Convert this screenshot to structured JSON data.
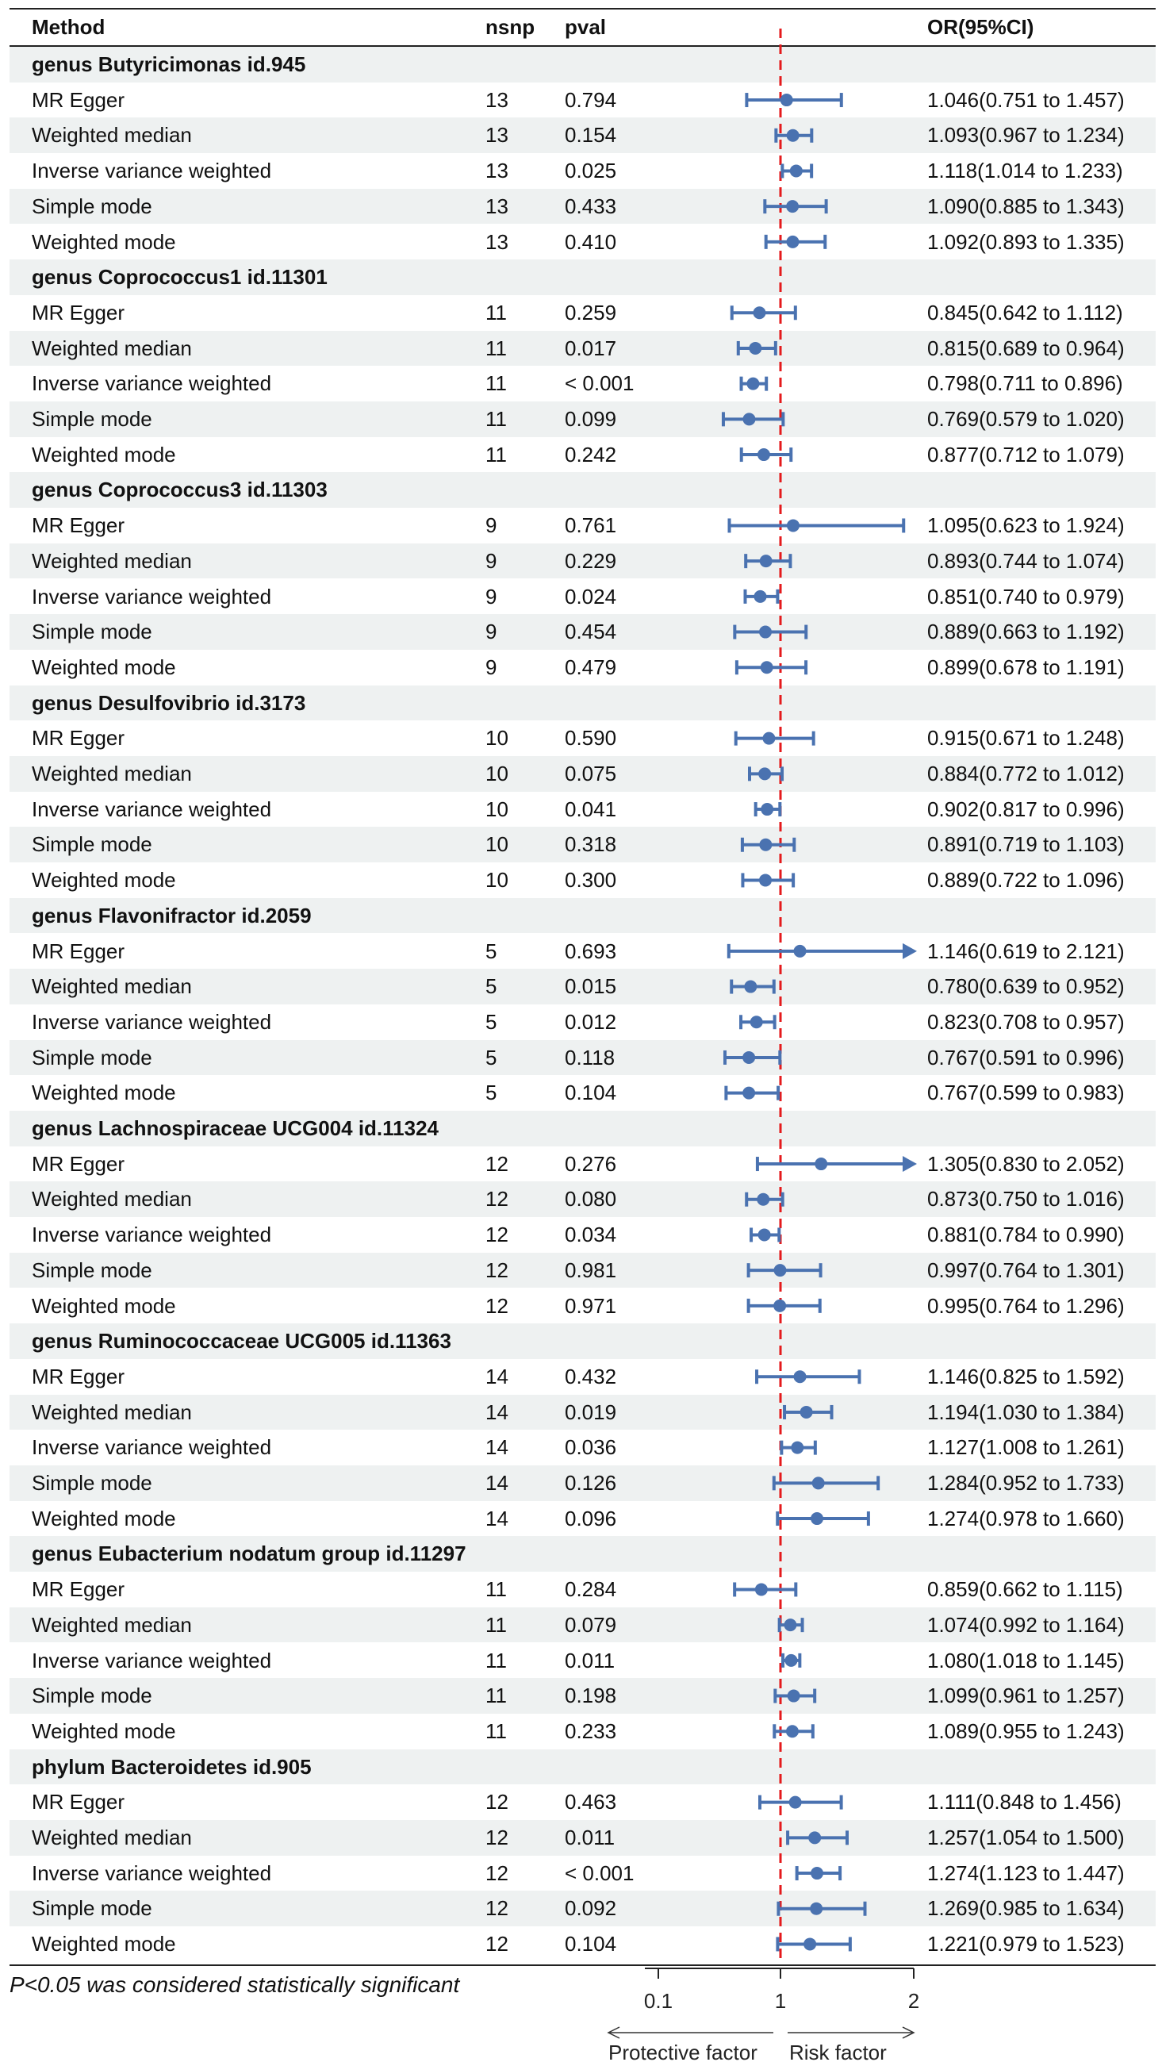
{
  "headers": {
    "method": "Method",
    "nsnp": "nsnp",
    "pval": "pval",
    "or": "OR(95%CI)"
  },
  "footnote": "P<0.05 was considered statistically significant",
  "colors": {
    "point": "#4a72b0",
    "reference": "#e41a1c",
    "shade": "#eef1f1"
  },
  "chart_data": {
    "type": "forest",
    "x_axis": {
      "ticks": [
        0.1,
        1,
        2
      ],
      "tick_labels": [
        "0.1",
        "1",
        "2"
      ],
      "reference_line": 1
    },
    "direction_labels": {
      "left": "Protective factor",
      "right": "Risk factor"
    },
    "groups": [
      {
        "label": "genus Butyricimonas id.945",
        "rows": [
          {
            "method": "MR Egger",
            "nsnp": "13",
            "pval": "0.794",
            "or": 1.046,
            "lo": 0.751,
            "hi": 1.457,
            "or_text": "1.046(0.751 to 1.457)"
          },
          {
            "method": "Weighted median",
            "nsnp": "13",
            "pval": "0.154",
            "or": 1.093,
            "lo": 0.967,
            "hi": 1.234,
            "or_text": "1.093(0.967 to 1.234)"
          },
          {
            "method": "Inverse variance weighted",
            "nsnp": "13",
            "pval": "0.025",
            "or": 1.118,
            "lo": 1.014,
            "hi": 1.233,
            "or_text": "1.118(1.014 to 1.233)"
          },
          {
            "method": "Simple mode",
            "nsnp": "13",
            "pval": "0.433",
            "or": 1.09,
            "lo": 0.885,
            "hi": 1.343,
            "or_text": "1.090(0.885 to 1.343)"
          },
          {
            "method": "Weighted mode",
            "nsnp": "13",
            "pval": "0.410",
            "or": 1.092,
            "lo": 0.893,
            "hi": 1.335,
            "or_text": "1.092(0.893 to 1.335)"
          }
        ]
      },
      {
        "label": "genus Coprococcus1 id.11301",
        "rows": [
          {
            "method": "MR Egger",
            "nsnp": "11",
            "pval": "0.259",
            "or": 0.845,
            "lo": 0.642,
            "hi": 1.112,
            "or_text": "0.845(0.642 to 1.112)"
          },
          {
            "method": "Weighted median",
            "nsnp": "11",
            "pval": "0.017",
            "or": 0.815,
            "lo": 0.689,
            "hi": 0.964,
            "or_text": "0.815(0.689 to 0.964)"
          },
          {
            "method": "Inverse variance weighted",
            "nsnp": "11",
            "pval": "< 0.001",
            "or": 0.798,
            "lo": 0.711,
            "hi": 0.896,
            "or_text": "0.798(0.711 to 0.896)"
          },
          {
            "method": "Simple mode",
            "nsnp": "11",
            "pval": "0.099",
            "or": 0.769,
            "lo": 0.579,
            "hi": 1.02,
            "or_text": "0.769(0.579 to 1.020)"
          },
          {
            "method": "Weighted mode",
            "nsnp": "11",
            "pval": "0.242",
            "or": 0.877,
            "lo": 0.712,
            "hi": 1.079,
            "or_text": "0.877(0.712 to 1.079)"
          }
        ]
      },
      {
        "label": "genus Coprococcus3 id.11303",
        "rows": [
          {
            "method": "MR Egger",
            "nsnp": "9",
            "pval": "0.761",
            "or": 1.095,
            "lo": 0.623,
            "hi": 1.924,
            "or_text": "1.095(0.623 to 1.924)"
          },
          {
            "method": "Weighted median",
            "nsnp": "9",
            "pval": "0.229",
            "or": 0.893,
            "lo": 0.744,
            "hi": 1.074,
            "or_text": "0.893(0.744 to 1.074)"
          },
          {
            "method": "Inverse variance weighted",
            "nsnp": "9",
            "pval": "0.024",
            "or": 0.851,
            "lo": 0.74,
            "hi": 0.979,
            "or_text": "0.851(0.740 to 0.979)"
          },
          {
            "method": "Simple mode",
            "nsnp": "9",
            "pval": "0.454",
            "or": 0.889,
            "lo": 0.663,
            "hi": 1.192,
            "or_text": "0.889(0.663 to 1.192)"
          },
          {
            "method": "Weighted mode",
            "nsnp": "9",
            "pval": "0.479",
            "or": 0.899,
            "lo": 0.678,
            "hi": 1.191,
            "or_text": "0.899(0.678 to 1.191)"
          }
        ]
      },
      {
        "label": "genus Desulfovibrio id.3173",
        "rows": [
          {
            "method": "MR Egger",
            "nsnp": "10",
            "pval": "0.590",
            "or": 0.915,
            "lo": 0.671,
            "hi": 1.248,
            "or_text": "0.915(0.671 to 1.248)"
          },
          {
            "method": "Weighted median",
            "nsnp": "10",
            "pval": "0.075",
            "or": 0.884,
            "lo": 0.772,
            "hi": 1.012,
            "or_text": "0.884(0.772 to 1.012)"
          },
          {
            "method": "Inverse variance weighted",
            "nsnp": "10",
            "pval": "0.041",
            "or": 0.902,
            "lo": 0.817,
            "hi": 0.996,
            "or_text": "0.902(0.817 to 0.996)"
          },
          {
            "method": "Simple mode",
            "nsnp": "10",
            "pval": "0.318",
            "or": 0.891,
            "lo": 0.719,
            "hi": 1.103,
            "or_text": "0.891(0.719 to 1.103)"
          },
          {
            "method": "Weighted mode",
            "nsnp": "10",
            "pval": "0.300",
            "or": 0.889,
            "lo": 0.722,
            "hi": 1.096,
            "or_text": "0.889(0.722 to 1.096)"
          }
        ]
      },
      {
        "label": "genus Flavonifractor id.2059",
        "rows": [
          {
            "method": "MR Egger",
            "nsnp": "5",
            "pval": "0.693",
            "or": 1.146,
            "lo": 0.619,
            "hi": 2.121,
            "or_text": "1.146(0.619 to 2.121)"
          },
          {
            "method": "Weighted median",
            "nsnp": "5",
            "pval": "0.015",
            "or": 0.78,
            "lo": 0.639,
            "hi": 0.952,
            "or_text": "0.780(0.639 to 0.952)"
          },
          {
            "method": "Inverse variance weighted",
            "nsnp": "5",
            "pval": "0.012",
            "or": 0.823,
            "lo": 0.708,
            "hi": 0.957,
            "or_text": "0.823(0.708 to 0.957)"
          },
          {
            "method": "Simple mode",
            "nsnp": "5",
            "pval": "0.118",
            "or": 0.767,
            "lo": 0.591,
            "hi": 0.996,
            "or_text": "0.767(0.591 to 0.996)"
          },
          {
            "method": "Weighted mode",
            "nsnp": "5",
            "pval": "0.104",
            "or": 0.767,
            "lo": 0.599,
            "hi": 0.983,
            "or_text": "0.767(0.599 to 0.983)"
          }
        ]
      },
      {
        "label": "genus Lachnospiraceae UCG004 id.11324",
        "rows": [
          {
            "method": "MR Egger",
            "nsnp": "12",
            "pval": "0.276",
            "or": 1.305,
            "lo": 0.83,
            "hi": 2.052,
            "or_text": "1.305(0.830 to 2.052)"
          },
          {
            "method": "Weighted median",
            "nsnp": "12",
            "pval": "0.080",
            "or": 0.873,
            "lo": 0.75,
            "hi": 1.016,
            "or_text": "0.873(0.750 to 1.016)"
          },
          {
            "method": "Inverse variance weighted",
            "nsnp": "12",
            "pval": "0.034",
            "or": 0.881,
            "lo": 0.784,
            "hi": 0.99,
            "or_text": "0.881(0.784 to 0.990)"
          },
          {
            "method": "Simple mode",
            "nsnp": "12",
            "pval": "0.981",
            "or": 0.997,
            "lo": 0.764,
            "hi": 1.301,
            "or_text": "0.997(0.764 to 1.301)"
          },
          {
            "method": "Weighted mode",
            "nsnp": "12",
            "pval": "0.971",
            "or": 0.995,
            "lo": 0.764,
            "hi": 1.296,
            "or_text": "0.995(0.764 to 1.296)"
          }
        ]
      },
      {
        "label": "genus Ruminococcaceae UCG005 id.11363",
        "rows": [
          {
            "method": "MR Egger",
            "nsnp": "14",
            "pval": "0.432",
            "or": 1.146,
            "lo": 0.825,
            "hi": 1.592,
            "or_text": "1.146(0.825 to 1.592)"
          },
          {
            "method": "Weighted median",
            "nsnp": "14",
            "pval": "0.019",
            "or": 1.194,
            "lo": 1.03,
            "hi": 1.384,
            "or_text": "1.194(1.030 to 1.384)"
          },
          {
            "method": "Inverse variance weighted",
            "nsnp": "14",
            "pval": "0.036",
            "or": 1.127,
            "lo": 1.008,
            "hi": 1.261,
            "or_text": "1.127(1.008 to 1.261)"
          },
          {
            "method": "Simple mode",
            "nsnp": "14",
            "pval": "0.126",
            "or": 1.284,
            "lo": 0.952,
            "hi": 1.733,
            "or_text": "1.284(0.952 to 1.733)"
          },
          {
            "method": "Weighted mode",
            "nsnp": "14",
            "pval": "0.096",
            "or": 1.274,
            "lo": 0.978,
            "hi": 1.66,
            "or_text": "1.274(0.978 to 1.660)"
          }
        ]
      },
      {
        "label": "genus Eubacterium nodatum group id.11297",
        "rows": [
          {
            "method": "MR Egger",
            "nsnp": "11",
            "pval": "0.284",
            "or": 0.859,
            "lo": 0.662,
            "hi": 1.115,
            "or_text": "0.859(0.662 to 1.115)"
          },
          {
            "method": "Weighted median",
            "nsnp": "11",
            "pval": "0.079",
            "or": 1.074,
            "lo": 0.992,
            "hi": 1.164,
            "or_text": "1.074(0.992 to 1.164)"
          },
          {
            "method": "Inverse variance weighted",
            "nsnp": "11",
            "pval": "0.011",
            "or": 1.08,
            "lo": 1.018,
            "hi": 1.145,
            "or_text": "1.080(1.018 to 1.145)"
          },
          {
            "method": "Simple mode",
            "nsnp": "11",
            "pval": "0.198",
            "or": 1.099,
            "lo": 0.961,
            "hi": 1.257,
            "or_text": "1.099(0.961 to 1.257)"
          },
          {
            "method": "Weighted mode",
            "nsnp": "11",
            "pval": "0.233",
            "or": 1.089,
            "lo": 0.955,
            "hi": 1.243,
            "or_text": "1.089(0.955 to 1.243)"
          }
        ]
      },
      {
        "label": "phylum Bacteroidetes id.905",
        "rows": [
          {
            "method": "MR Egger",
            "nsnp": "12",
            "pval": "0.463",
            "or": 1.111,
            "lo": 0.848,
            "hi": 1.456,
            "or_text": "1.111(0.848 to 1.456)"
          },
          {
            "method": "Weighted median",
            "nsnp": "12",
            "pval": "0.011",
            "or": 1.257,
            "lo": 1.054,
            "hi": 1.5,
            "or_text": "1.257(1.054 to 1.500)"
          },
          {
            "method": "Inverse variance weighted",
            "nsnp": "12",
            "pval": "< 0.001",
            "or": 1.274,
            "lo": 1.123,
            "hi": 1.447,
            "or_text": "1.274(1.123 to 1.447)"
          },
          {
            "method": "Simple mode",
            "nsnp": "12",
            "pval": "0.092",
            "or": 1.269,
            "lo": 0.985,
            "hi": 1.634,
            "or_text": "1.269(0.985 to 1.634)"
          },
          {
            "method": "Weighted mode",
            "nsnp": "12",
            "pval": "0.104",
            "or": 1.221,
            "lo": 0.979,
            "hi": 1.523,
            "or_text": "1.221(0.979 to 1.523)"
          }
        ]
      }
    ]
  }
}
